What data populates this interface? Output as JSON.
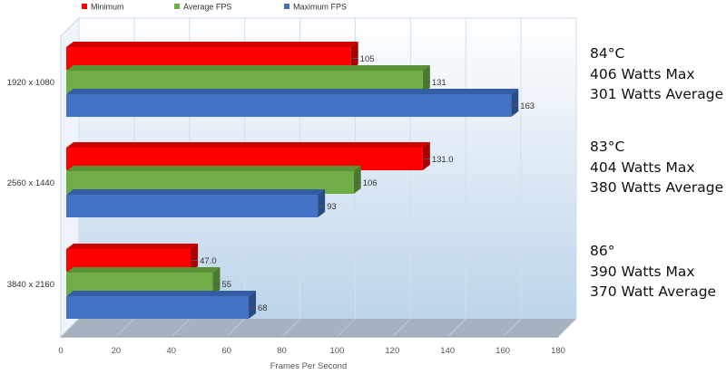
{
  "chart_data": {
    "type": "bar",
    "orientation": "horizontal",
    "xlabel": "Frames Per Second",
    "xlim": [
      0,
      180
    ],
    "xticks": [
      0,
      20,
      40,
      60,
      80,
      100,
      120,
      140,
      160,
      180
    ],
    "grid": true,
    "legend_position": "top-left",
    "categories": [
      "1920 x 1080",
      "2560 x 1440",
      "3840 x 2160"
    ],
    "series": [
      {
        "name": "Minimum",
        "color": "#ff0000",
        "values": [
          105,
          131,
          47
        ],
        "labels": [
          "105",
          "131.0",
          "47.0"
        ]
      },
      {
        "name": "Average FPS",
        "color": "#70ad47",
        "values": [
          131,
          106,
          55
        ],
        "labels": [
          "131",
          "106",
          "55"
        ]
      },
      {
        "name": "Maximum FPS",
        "color": "#4472c4",
        "values": [
          163,
          93,
          68
        ],
        "labels": [
          "163",
          "93",
          "68"
        ]
      }
    ]
  },
  "annotations": [
    [
      "84°C",
      "406 Watts Max",
      "301 Watts Average"
    ],
    [
      "83°C",
      "404 Watts Max",
      "380 Watts Average"
    ],
    [
      "86°",
      "390 Watts Max",
      "370 Watt Average"
    ]
  ]
}
